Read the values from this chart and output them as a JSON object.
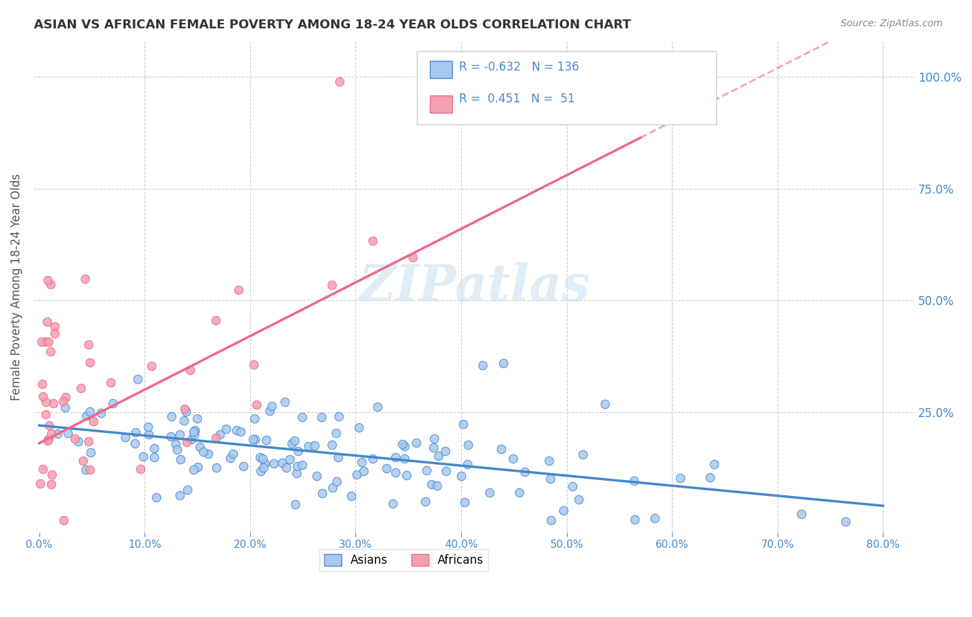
{
  "title": "ASIAN VS AFRICAN FEMALE POVERTY AMONG 18-24 YEAR OLDS CORRELATION CHART",
  "source": "Source: ZipAtlas.com",
  "ylabel": "Female Poverty Among 18-24 Year Olds",
  "xlabel_ticks": [
    "0.0%",
    "80.0%"
  ],
  "ylabel_ticks": [
    "100.0%",
    "75.0%",
    "50.0%",
    "25.0%"
  ],
  "legend_labels": [
    "Asians",
    "Africans"
  ],
  "asian_color": "#a8c8f0",
  "african_color": "#f4a0b0",
  "asian_line_color": "#4488cc",
  "african_line_color": "#ee6688",
  "asian_R": -0.632,
  "asian_N": 136,
  "african_R": 0.451,
  "african_N": 51,
  "watermark": "ZIPatlas",
  "bg_color": "#ffffff",
  "title_color": "#333333",
  "tick_color": "#4488cc",
  "source_color": "#888888"
}
